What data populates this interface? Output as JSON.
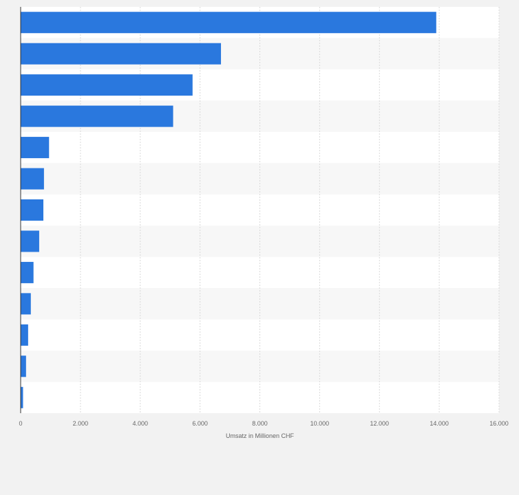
{
  "chart_data": {
    "type": "bar",
    "orientation": "horizontal",
    "categories": [
      "",
      "",
      "",
      "",
      "",
      "",
      "",
      "",
      "",
      "",
      "",
      "",
      ""
    ],
    "values": [
      13900,
      6700,
      5750,
      5100,
      950,
      780,
      760,
      620,
      430,
      340,
      250,
      180,
      80
    ],
    "title": "",
    "xlabel": "Umsatz in Millionen CHF",
    "ylabel": "",
    "xlim": [
      0,
      16000
    ],
    "ticks": [
      0,
      2000,
      4000,
      6000,
      8000,
      10000,
      12000,
      14000,
      16000
    ],
    "tick_labels": [
      "0",
      "2.000",
      "4.000",
      "6.000",
      "8.000",
      "10.000",
      "12.000",
      "14.000",
      "16.000"
    ],
    "grid": true,
    "legend": "none",
    "bar_color": "#2a78de"
  }
}
